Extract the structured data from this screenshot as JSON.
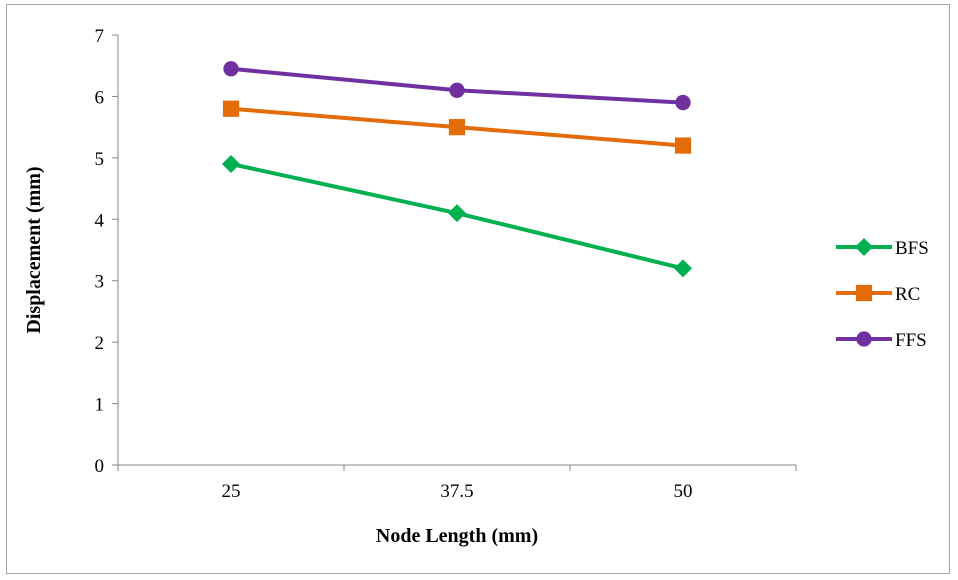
{
  "chart_data": {
    "type": "line",
    "categories": [
      "25",
      "37.5",
      "50"
    ],
    "series": [
      {
        "name": "BFS",
        "values": [
          4.9,
          4.1,
          3.2
        ],
        "color": "#00b050",
        "marker": "diamond"
      },
      {
        "name": "RC",
        "values": [
          5.8,
          5.5,
          5.2
        ],
        "color": "#e36c09",
        "marker": "square"
      },
      {
        "name": "FFS",
        "values": [
          6.45,
          6.1,
          5.9
        ],
        "color": "#7030a0",
        "marker": "circle"
      }
    ],
    "title": "",
    "xlabel": "Node Length (mm)",
    "ylabel": "Displacement (mm)",
    "ylim": [
      0,
      7
    ],
    "yticks": [
      0,
      1,
      2,
      3,
      4,
      5,
      6,
      7
    ],
    "grid": false,
    "legend_position": "right"
  }
}
